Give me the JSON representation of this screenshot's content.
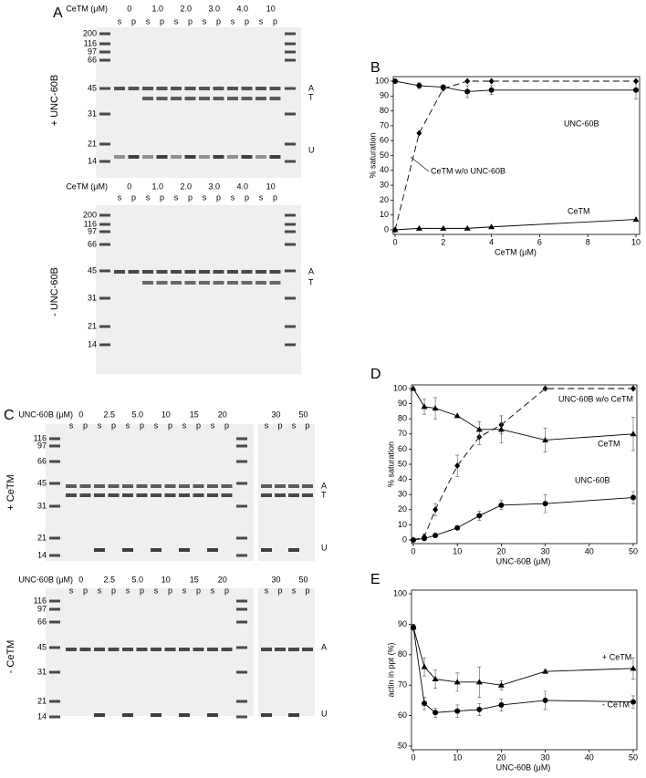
{
  "panel_labels": [
    "A",
    "B",
    "C",
    "D",
    "E"
  ],
  "gels": [
    {
      "header": "CeTM (μM)",
      "concentrations": [
        "0",
        "1.0",
        "2.0",
        "3.0",
        "4.0",
        "10"
      ],
      "lanes": [
        "s",
        "p",
        "s",
        "p",
        "s",
        "p",
        "s",
        "p",
        "s",
        "p",
        "s",
        "p"
      ],
      "markers": [
        "200",
        "116",
        "97",
        "66",
        "45",
        "31",
        "21",
        "14"
      ],
      "condition": "+ UNC-60B",
      "bands": [
        "A",
        "T",
        "U"
      ]
    },
    {
      "header": "CeTM (μM)",
      "concentrations": [
        "0",
        "1.0",
        "2.0",
        "3.0",
        "4.0",
        "10"
      ],
      "lanes": [
        "s",
        "p",
        "s",
        "p",
        "s",
        "p",
        "s",
        "p",
        "s",
        "p",
        "s",
        "p"
      ],
      "markers": [
        "200",
        "116",
        "97",
        "66",
        "45",
        "31",
        "21",
        "14"
      ],
      "condition": "- UNC-60B",
      "bands": [
        "A",
        "T"
      ]
    },
    {
      "header": "UNC-60B (μM)",
      "concentrations": [
        "0",
        "2.5",
        "5.0",
        "10",
        "15",
        "20",
        "30",
        "50"
      ],
      "lanes": [
        "s",
        "p",
        "s",
        "p",
        "s",
        "p",
        "s",
        "p",
        "s",
        "p",
        "s",
        "p",
        "s",
        "p",
        "s",
        "p"
      ],
      "markers": [
        "116",
        "97",
        "66",
        "45",
        "31",
        "21",
        "14"
      ],
      "condition": "+ CeTM",
      "bands": [
        "A",
        "T",
        "U"
      ]
    },
    {
      "header": "UNC-60B (μM)",
      "concentrations": [
        "0",
        "2.5",
        "5.0",
        "10",
        "15",
        "20",
        "30",
        "50"
      ],
      "lanes": [
        "s",
        "p",
        "s",
        "p",
        "s",
        "p",
        "s",
        "p",
        "s",
        "p",
        "s",
        "p",
        "s",
        "p",
        "s",
        "p"
      ],
      "markers": [
        "116",
        "97",
        "66",
        "45",
        "31",
        "21",
        "14"
      ],
      "condition": "- CeTM",
      "bands": [
        "A",
        "U"
      ]
    }
  ],
  "chart_data": [
    {
      "type": "line",
      "xlabel": "CeTM (μM)",
      "ylabel": "% saturation",
      "x": [
        0,
        1,
        2,
        3,
        4,
        10
      ],
      "xlim": [
        0,
        10
      ],
      "xticks": [
        0,
        2,
        4,
        6,
        8,
        10
      ],
      "ylim": [
        0,
        100
      ],
      "yticks": [
        0,
        10,
        20,
        30,
        40,
        50,
        60,
        70,
        80,
        90,
        100
      ],
      "series": [
        {
          "name": "UNC-60B",
          "color": "#000000",
          "marker": "circle",
          "dashed": false,
          "values": [
            100,
            97,
            96,
            93,
            94,
            94
          ],
          "errors": [
            0,
            2,
            1,
            4,
            3,
            6
          ]
        },
        {
          "name": "CeTM w/o UNC-60B",
          "color": "#000000",
          "marker": "diamond",
          "dashed": true,
          "values": [
            0,
            65,
            95,
            100,
            100,
            100
          ]
        },
        {
          "name": "CeTM",
          "color": "#000000",
          "marker": "triangle",
          "dashed": false,
          "values": [
            0,
            1,
            1,
            1,
            2,
            7
          ]
        }
      ]
    },
    {
      "type": "line",
      "xlabel": "UNC-60B (μM)",
      "ylabel": "% saturation",
      "x": [
        0,
        2.5,
        5,
        10,
        15,
        20,
        30,
        50
      ],
      "xlim": [
        0,
        50
      ],
      "xticks": [
        0,
        10,
        20,
        30,
        40,
        50
      ],
      "ylim": [
        0,
        100
      ],
      "yticks": [
        0,
        10,
        20,
        30,
        40,
        50,
        60,
        70,
        80,
        90,
        100
      ],
      "series": [
        {
          "name": "UNC-60B w/o CeTM",
          "color": "#000000",
          "marker": "diamond",
          "dashed": true,
          "values": [
            0,
            2,
            20,
            49,
            68,
            76,
            100,
            100
          ],
          "errors": [
            0,
            2,
            4,
            7,
            5,
            6,
            0,
            0
          ]
        },
        {
          "name": "CeTM",
          "color": "#000000",
          "marker": "triangle",
          "dashed": false,
          "values": [
            100,
            88,
            87,
            82,
            73,
            73,
            66,
            70
          ],
          "errors": [
            0,
            5,
            7,
            0,
            5,
            9,
            8,
            11
          ]
        },
        {
          "name": "UNC-60B",
          "color": "#000000",
          "marker": "circle",
          "dashed": false,
          "values": [
            0,
            1,
            3,
            8,
            16,
            23,
            24,
            28
          ],
          "errors": [
            0,
            1,
            1,
            1,
            3,
            3,
            6,
            4
          ]
        }
      ]
    },
    {
      "type": "line",
      "xlabel": "UNC-60B (μM)",
      "ylabel": "actin in ppt (%)",
      "x": [
        0,
        2.5,
        5,
        10,
        15,
        20,
        30,
        50
      ],
      "xlim": [
        0,
        50
      ],
      "xticks": [
        0,
        10,
        20,
        30,
        40,
        50
      ],
      "ylim": [
        50,
        100
      ],
      "yticks": [
        50,
        60,
        70,
        80,
        90,
        100
      ],
      "series": [
        {
          "name": "+ CeTM",
          "color": "#000000",
          "marker": "triangle",
          "dashed": false,
          "values": [
            89,
            76,
            72,
            71,
            71,
            70,
            74.5,
            75.5
          ],
          "errors": [
            1,
            3,
            3,
            3,
            5,
            1.5,
            0.5,
            3.5
          ]
        },
        {
          "name": "- CeTM",
          "color": "#000000",
          "marker": "circle",
          "dashed": false,
          "values": [
            89,
            64,
            61,
            61.5,
            62,
            63.5,
            65,
            64.5
          ],
          "errors": [
            1,
            2,
            1.5,
            2,
            2,
            2,
            3,
            2
          ]
        }
      ]
    }
  ]
}
